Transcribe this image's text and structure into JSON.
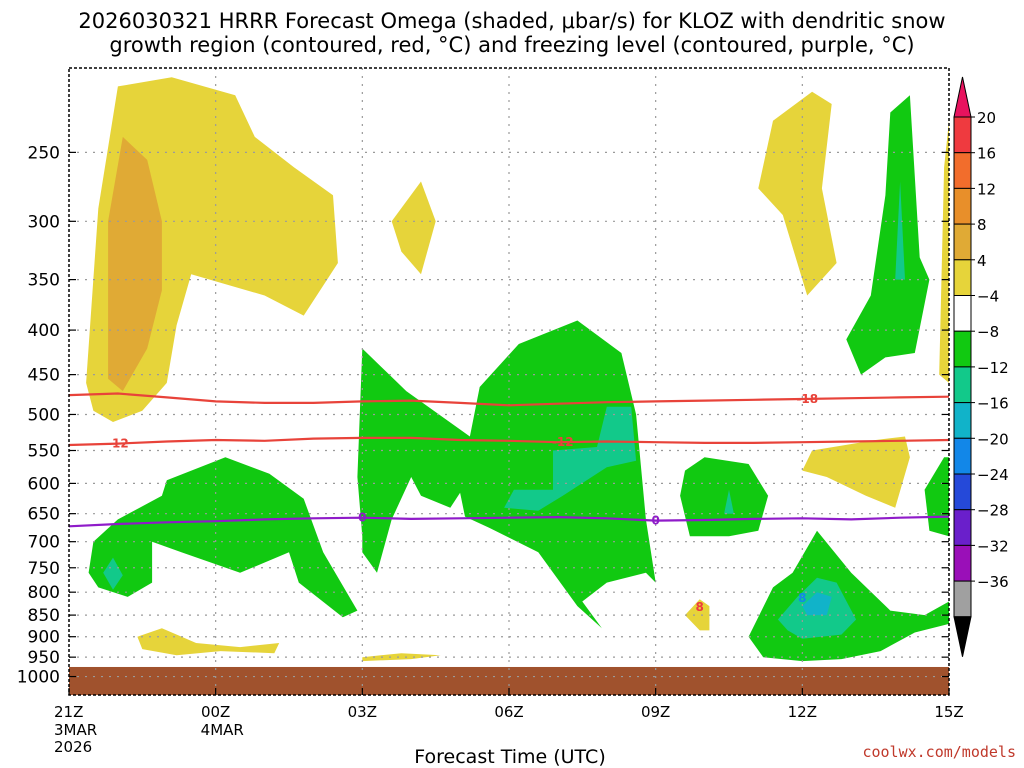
{
  "chart_data": {
    "type": "heatmap",
    "title_line1": "2026030321 HRRR Forecast Omega (shaded, μbar/s) for KLOZ with dendritic snow",
    "title_line2": "growth region (contoured, red, °C) and freezing level (contoured, purple, °C)",
    "xlabel": "Forecast Time (UTC)",
    "ylabel": "",
    "credit": "coolwx.com/models",
    "y_axis": {
      "type": "log_pressure",
      "range": [
        1050,
        200
      ],
      "ticks": [
        250,
        300,
        350,
        400,
        450,
        500,
        550,
        600,
        650,
        700,
        750,
        800,
        850,
        900,
        950,
        1000
      ]
    },
    "x_axis": {
      "range_hours": [
        0,
        18
      ],
      "ticks": [
        {
          "hour": 0,
          "label": "21Z",
          "line2": "3MAR",
          "line3": "2026"
        },
        {
          "hour": 3,
          "label": "00Z",
          "line2": "4MAR",
          "line3": ""
        },
        {
          "hour": 6,
          "label": "03Z",
          "line2": "",
          "line3": ""
        },
        {
          "hour": 9,
          "label": "06Z",
          "line2": "",
          "line3": ""
        },
        {
          "hour": 12,
          "label": "09Z",
          "line2": "",
          "line3": ""
        },
        {
          "hour": 15,
          "label": "12Z",
          "line2": "",
          "line3": ""
        },
        {
          "hour": 18,
          "label": "15Z",
          "line2": "",
          "line3": ""
        }
      ]
    },
    "colorbar": {
      "labels": [
        "20",
        "16",
        "12",
        "8",
        "4",
        "−4",
        "−8",
        "−12",
        "−16",
        "−20",
        "−24",
        "−28",
        "−32",
        "−36"
      ],
      "colors": [
        "#e8135e",
        "#ef3a3f",
        "#f26d2c",
        "#e88f2a",
        "#e0aa35",
        "#e6d43a",
        "#ffffff",
        "#11c911",
        "#12c98a",
        "#11b3c9",
        "#1287e8",
        "#2549d9",
        "#6a1fcb",
        "#9a0fb8",
        "#a0a0a0",
        "#000000"
      ]
    },
    "shaded_regions": [
      {
        "level": 4,
        "color": "#e6d43a",
        "points": [
          [
            0.35,
            460
          ],
          [
            0.6,
            290
          ],
          [
            1.0,
            210
          ],
          [
            2.1,
            205
          ],
          [
            3.4,
            215
          ],
          [
            3.8,
            240
          ],
          [
            4.6,
            260
          ],
          [
            5.4,
            280
          ],
          [
            5.5,
            335
          ],
          [
            4.8,
            385
          ],
          [
            4.0,
            365
          ],
          [
            2.5,
            345
          ],
          [
            2.2,
            395
          ],
          [
            2.0,
            460
          ],
          [
            1.5,
            495
          ],
          [
            0.9,
            510
          ],
          [
            0.5,
            495
          ]
        ]
      },
      {
        "level": 8,
        "color": "#e0aa35",
        "points": [
          [
            0.8,
            455
          ],
          [
            0.8,
            300
          ],
          [
            1.1,
            240
          ],
          [
            1.6,
            255
          ],
          [
            1.9,
            300
          ],
          [
            1.9,
            360
          ],
          [
            1.6,
            420
          ],
          [
            1.1,
            470
          ]
        ]
      },
      {
        "level": 4,
        "color": "#e6d43a",
        "points": [
          [
            6.6,
            300
          ],
          [
            7.2,
            270
          ],
          [
            7.5,
            300
          ],
          [
            7.2,
            345
          ],
          [
            6.8,
            325
          ]
        ]
      },
      {
        "level": 4,
        "color": "#e6d43a",
        "points": [
          [
            14.1,
            275
          ],
          [
            14.4,
            230
          ],
          [
            15.2,
            213
          ],
          [
            15.6,
            220
          ],
          [
            15.4,
            275
          ],
          [
            15.7,
            335
          ],
          [
            15.1,
            365
          ],
          [
            14.6,
            295
          ]
        ]
      },
      {
        "level": 4,
        "color": "#e6d43a",
        "points": [
          [
            17.8,
            450
          ],
          [
            17.9,
            260
          ],
          [
            18.0,
            230
          ],
          [
            18.0,
            460
          ]
        ]
      },
      {
        "level": 4,
        "color": "#e6d43a",
        "points": [
          [
            15.0,
            580
          ],
          [
            15.2,
            550
          ],
          [
            16.5,
            535
          ],
          [
            17.1,
            530
          ],
          [
            17.2,
            560
          ],
          [
            16.9,
            640
          ],
          [
            16.3,
            620
          ],
          [
            15.5,
            590
          ]
        ]
      },
      {
        "level": 4,
        "color": "#e6d43a",
        "points": [
          [
            1.4,
            900
          ],
          [
            1.9,
            880
          ],
          [
            2.6,
            915
          ],
          [
            3.5,
            925
          ],
          [
            4.3,
            915
          ],
          [
            4.2,
            940
          ],
          [
            3.1,
            935
          ],
          [
            2.2,
            945
          ],
          [
            1.5,
            930
          ]
        ]
      },
      {
        "level": 4,
        "color": "#e6d43a",
        "points": [
          [
            6.0,
            950
          ],
          [
            6.8,
            940
          ],
          [
            7.6,
            945
          ],
          [
            7.0,
            955
          ],
          [
            6.0,
            960
          ]
        ]
      },
      {
        "level": 4,
        "color": "#e6d43a",
        "points": [
          [
            12.6,
            850
          ],
          [
            12.9,
            815
          ],
          [
            13.1,
            830
          ],
          [
            13.1,
            885
          ],
          [
            12.9,
            885
          ]
        ]
      },
      {
        "level": -4,
        "color": "#11c911",
        "points": [
          [
            0.4,
            760
          ],
          [
            0.5,
            700
          ],
          [
            1.0,
            660
          ],
          [
            1.9,
            620
          ],
          [
            2.0,
            595
          ],
          [
            3.2,
            560
          ],
          [
            4.1,
            585
          ],
          [
            4.8,
            625
          ],
          [
            5.2,
            720
          ],
          [
            5.9,
            840
          ],
          [
            5.6,
            855
          ],
          [
            4.7,
            780
          ],
          [
            4.5,
            720
          ],
          [
            3.5,
            760
          ],
          [
            2.3,
            720
          ],
          [
            1.7,
            700
          ],
          [
            1.7,
            780
          ],
          [
            1.2,
            810
          ],
          [
            0.6,
            790
          ]
        ]
      },
      {
        "level": -4,
        "color": "#11c911",
        "points": [
          [
            6.0,
            690
          ],
          [
            5.9,
            590
          ],
          [
            6.0,
            420
          ],
          [
            6.9,
            470
          ],
          [
            8.2,
            530
          ],
          [
            8.4,
            465
          ],
          [
            9.2,
            415
          ],
          [
            10.4,
            390
          ],
          [
            11.3,
            425
          ],
          [
            11.6,
            500
          ],
          [
            11.8,
            660
          ],
          [
            12.0,
            780
          ],
          [
            11.8,
            760
          ],
          [
            11.0,
            780
          ],
          [
            10.5,
            820
          ],
          [
            10.9,
            880
          ],
          [
            10.4,
            830
          ],
          [
            9.6,
            720
          ],
          [
            8.6,
            675
          ],
          [
            8.1,
            655
          ],
          [
            8.0,
            615
          ],
          [
            7.8,
            640
          ],
          [
            7.2,
            620
          ],
          [
            7.0,
            590
          ],
          [
            6.6,
            660
          ],
          [
            6.3,
            760
          ],
          [
            6.0,
            720
          ]
        ]
      },
      {
        "level": -4,
        "color": "#11c911",
        "points": [
          [
            12.5,
            620
          ],
          [
            12.6,
            580
          ],
          [
            13.0,
            560
          ],
          [
            13.9,
            570
          ],
          [
            14.3,
            620
          ],
          [
            14.1,
            680
          ],
          [
            13.5,
            690
          ],
          [
            12.7,
            690
          ]
        ]
      },
      {
        "level": -4,
        "color": "#11c911",
        "points": [
          [
            13.9,
            900
          ],
          [
            14.4,
            790
          ],
          [
            14.8,
            760
          ],
          [
            15.3,
            680
          ],
          [
            16.0,
            760
          ],
          [
            16.8,
            840
          ],
          [
            17.5,
            850
          ],
          [
            18.0,
            820
          ],
          [
            18.0,
            870
          ],
          [
            17.3,
            890
          ],
          [
            16.6,
            935
          ],
          [
            15.8,
            955
          ],
          [
            15.0,
            960
          ],
          [
            14.2,
            950
          ]
        ]
      },
      {
        "level": -4,
        "color": "#11c911",
        "points": [
          [
            15.9,
            410
          ],
          [
            16.4,
            365
          ],
          [
            16.7,
            280
          ],
          [
            16.8,
            225
          ],
          [
            17.2,
            215
          ],
          [
            17.4,
            330
          ],
          [
            17.6,
            350
          ],
          [
            17.3,
            425
          ],
          [
            16.7,
            430
          ],
          [
            16.2,
            450
          ]
        ]
      },
      {
        "level": -4,
        "color": "#11c911",
        "points": [
          [
            17.6,
            680
          ],
          [
            17.5,
            610
          ],
          [
            17.9,
            560
          ],
          [
            18.0,
            560
          ],
          [
            18.0,
            690
          ]
        ]
      },
      {
        "level": -8,
        "color": "#12c98a",
        "points": [
          [
            0.7,
            760
          ],
          [
            0.9,
            730
          ],
          [
            1.1,
            765
          ],
          [
            0.9,
            795
          ]
        ]
      },
      {
        "level": -8,
        "color": "#12c98a",
        "points": [
          [
            8.9,
            640
          ],
          [
            9.1,
            610
          ],
          [
            9.9,
            610
          ],
          [
            9.9,
            550
          ],
          [
            10.8,
            545
          ],
          [
            11.0,
            490
          ],
          [
            11.5,
            490
          ],
          [
            11.6,
            565
          ],
          [
            11.0,
            575
          ],
          [
            10.1,
            620
          ],
          [
            9.6,
            645
          ]
        ]
      },
      {
        "level": -8,
        "color": "#12c98a",
        "points": [
          [
            14.5,
            860
          ],
          [
            14.9,
            810
          ],
          [
            15.3,
            770
          ],
          [
            15.7,
            780
          ],
          [
            16.1,
            860
          ],
          [
            15.8,
            895
          ],
          [
            15.0,
            905
          ],
          [
            14.7,
            885
          ]
        ]
      },
      {
        "level": -8,
        "color": "#12c98a",
        "points": [
          [
            16.9,
            350
          ],
          [
            17.0,
            270
          ],
          [
            17.1,
            350
          ]
        ]
      },
      {
        "level": -8,
        "color": "#12c98a",
        "points": [
          [
            13.4,
            650
          ],
          [
            13.5,
            610
          ],
          [
            13.6,
            650
          ]
        ]
      },
      {
        "level": -12,
        "color": "#11b3c9",
        "points": [
          [
            15.0,
            830
          ],
          [
            15.3,
            800
          ],
          [
            15.6,
            810
          ],
          [
            15.5,
            850
          ],
          [
            15.1,
            850
          ]
        ]
      }
    ],
    "contours": [
      {
        "name": "dgz_-18",
        "value": -18,
        "color": "#e8433a",
        "label": "-18",
        "label_hour": 15.1,
        "x": [
          0,
          1,
          2,
          3,
          4,
          5,
          6,
          7,
          8,
          9,
          10,
          11,
          12,
          13,
          14,
          15,
          16,
          17,
          18
        ],
        "y": [
          475,
          473,
          478,
          483,
          485,
          485,
          483,
          482,
          485,
          488,
          486,
          484,
          483,
          482,
          481,
          480,
          479,
          478,
          477
        ]
      },
      {
        "name": "dgz_-12",
        "value": -12,
        "color": "#e8433a",
        "label": "-12",
        "label_hour": 1.0,
        "label2": "-12",
        "label2_hour": 10.1,
        "x": [
          0,
          1,
          2,
          3,
          4,
          5,
          6,
          7,
          8,
          9,
          10,
          11,
          12,
          13,
          14,
          15,
          16,
          17,
          18
        ],
        "y": [
          542,
          540,
          537,
          535,
          536,
          533,
          532,
          532,
          535,
          536,
          538,
          537,
          538,
          539,
          539,
          538,
          537,
          536,
          535
        ]
      },
      {
        "name": "freezing_level_0",
        "value": 0,
        "color": "#8f1bc9",
        "label": "0",
        "label_hour": 6.0,
        "label2": "0",
        "label2_hour": 12.0,
        "x": [
          0,
          1,
          2,
          3,
          4,
          5,
          6,
          7,
          8,
          9,
          10,
          11,
          12,
          13,
          14,
          15,
          16,
          17,
          18
        ],
        "y": [
          672,
          668,
          665,
          663,
          660,
          658,
          657,
          659,
          658,
          657,
          656,
          658,
          662,
          661,
          659,
          658,
          660,
          657,
          655
        ]
      }
    ],
    "point_labels": [
      {
        "text": "8",
        "hour": 15.0,
        "pressure": 810,
        "color": "#1287e8"
      },
      {
        "text": "8",
        "hour": 12.9,
        "pressure": 830,
        "color": "#ef3a3f"
      }
    ],
    "ground": {
      "from_pressure": 975,
      "to_pressure": 1050,
      "color": "#a0522d"
    }
  }
}
